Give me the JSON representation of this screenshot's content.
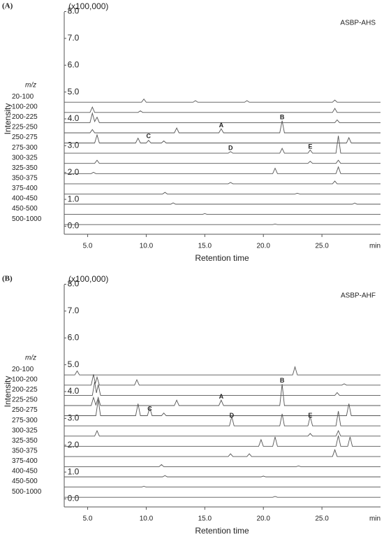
{
  "chart_data": [
    {
      "type": "line",
      "panel_label": "(A)",
      "title": "ASBP-AHS",
      "y_unit": "(x100,000)",
      "legend_title": "m/z",
      "ylabel": "Intensity",
      "xlabel": "Retention time",
      "x_unit": "min",
      "color": "#555555",
      "xlim": [
        3,
        30
      ],
      "ylim": [
        -0.3,
        8.3
      ],
      "xticks": [
        {
          "value": 5,
          "label": "5.0"
        },
        {
          "value": 10,
          "label": "10.0"
        },
        {
          "value": 15,
          "label": "15.0"
        },
        {
          "value": 20,
          "label": "20.0"
        },
        {
          "value": 25,
          "label": "25.0"
        }
      ],
      "yticks": [
        {
          "value": 0,
          "label": "0.0"
        },
        {
          "value": 1,
          "label": "1.0"
        },
        {
          "value": 2,
          "label": "2.0"
        },
        {
          "value": 3,
          "label": "3.0"
        },
        {
          "value": 4,
          "label": "4.0"
        },
        {
          "value": 5,
          "label": "5.0"
        },
        {
          "value": 6,
          "label": "6.0"
        },
        {
          "value": 7,
          "label": "7.0"
        },
        {
          "value": 8,
          "label": "8.0"
        }
      ],
      "series": [
        {
          "name": "20-100",
          "x": [
            3,
            9.6,
            9.8,
            10,
            14,
            14.2,
            14.4,
            18.4,
            18.6,
            18.8,
            25.9,
            26.1,
            26.3,
            30
          ],
          "values": [
            4.62,
            4.62,
            4.74,
            4.62,
            4.62,
            4.68,
            4.62,
            4.62,
            4.68,
            4.62,
            4.62,
            4.7,
            4.62,
            4.62
          ]
        },
        {
          "name": "100-200",
          "x": [
            3,
            5.2,
            5.4,
            5.6,
            9.3,
            9.5,
            9.7,
            25.9,
            26.1,
            26.3,
            30
          ],
          "values": [
            4.24,
            4.24,
            4.44,
            4.24,
            4.24,
            4.3,
            4.24,
            4.24,
            4.39,
            4.24,
            4.24
          ]
        },
        {
          "name": "200-225",
          "x": [
            3,
            5.2,
            5.4,
            5.6,
            5.8,
            6,
            26.1,
            26.3,
            26.5,
            30
          ],
          "values": [
            3.86,
            3.86,
            4.21,
            3.9,
            4.06,
            3.86,
            3.86,
            3.96,
            3.86,
            3.86
          ]
        },
        {
          "name": "225-250",
          "x": [
            3,
            5.2,
            5.4,
            5.6,
            12.4,
            12.6,
            12.8,
            16.2,
            16.4,
            16.6,
            21.4,
            21.6,
            21.8,
            30
          ],
          "values": [
            3.48,
            3.48,
            3.6,
            3.48,
            3.48,
            3.66,
            3.48,
            3.48,
            3.63,
            3.48,
            3.48,
            3.93,
            3.48,
            3.48
          ]
        },
        {
          "name": "250-275",
          "x": [
            3,
            5.6,
            5.8,
            6,
            9.1,
            9.3,
            9.5,
            10,
            10.2,
            10.4,
            11.3,
            11.5,
            11.7,
            27.1,
            27.3,
            27.5,
            30
          ],
          "values": [
            3.1,
            3.1,
            3.4,
            3.1,
            3.1,
            3.28,
            3.1,
            3.1,
            3.2,
            3.1,
            3.1,
            3.18,
            3.1,
            3.1,
            3.3,
            3.1,
            3.1
          ]
        },
        {
          "name": "275-300",
          "x": [
            3,
            17,
            17.2,
            17.4,
            21.4,
            21.6,
            21.8,
            23.8,
            24,
            24.2,
            26.2,
            26.4,
            26.6,
            30
          ],
          "values": [
            2.72,
            2.72,
            2.78,
            2.72,
            2.72,
            2.9,
            2.72,
            2.72,
            2.84,
            2.72,
            2.72,
            3.37,
            2.72,
            2.72
          ]
        },
        {
          "name": "300-325",
          "x": [
            3,
            5.6,
            5.8,
            6,
            23.8,
            24,
            24.2,
            26.2,
            26.4,
            26.6,
            30
          ],
          "values": [
            2.34,
            2.34,
            2.46,
            2.34,
            2.34,
            2.42,
            2.34,
            2.34,
            2.46,
            2.34,
            2.34
          ]
        },
        {
          "name": "325-350",
          "x": [
            3,
            5.3,
            5.5,
            5.7,
            20.8,
            21,
            21.2,
            26.2,
            26.4,
            26.6,
            30
          ],
          "values": [
            1.96,
            1.96,
            2.01,
            1.96,
            1.96,
            2.16,
            1.96,
            1.96,
            2.21,
            1.96,
            1.96
          ]
        },
        {
          "name": "350-375",
          "x": [
            3,
            17,
            17.2,
            17.4,
            25.9,
            26.1,
            26.3,
            30
          ],
          "values": [
            1.58,
            1.58,
            1.63,
            1.58,
            1.58,
            1.68,
            1.58,
            1.58
          ]
        },
        {
          "name": "375-400",
          "x": [
            3,
            11.4,
            11.6,
            11.8,
            22.7,
            22.9,
            23.1,
            30
          ],
          "values": [
            1.2,
            1.2,
            1.26,
            1.2,
            1.2,
            1.23,
            1.2,
            1.2
          ]
        },
        {
          "name": "400-450",
          "x": [
            3,
            12.1,
            12.3,
            12.5,
            27.6,
            27.8,
            28,
            30
          ],
          "values": [
            0.82,
            0.82,
            0.87,
            0.82,
            0.82,
            0.86,
            0.82,
            0.82
          ]
        },
        {
          "name": "450-500",
          "x": [
            3,
            14.8,
            15,
            15.2,
            30
          ],
          "values": [
            0.44,
            0.44,
            0.47,
            0.44,
            0.44
          ]
        },
        {
          "name": "500-1000",
          "x": [
            3,
            20.8,
            21,
            21.2,
            30
          ],
          "values": [
            0.06,
            0.06,
            0.08,
            0.06,
            0.06
          ]
        }
      ],
      "annotations": [
        {
          "text": "A",
          "x": 16.4,
          "y": 3.75
        },
        {
          "text": "B",
          "x": 21.6,
          "y": 4.05
        },
        {
          "text": "C",
          "x": 10.2,
          "y": 3.35
        },
        {
          "text": "D",
          "x": 17.2,
          "y": 2.9
        },
        {
          "text": "E",
          "x": 24.0,
          "y": 2.95
        }
      ]
    },
    {
      "type": "line",
      "panel_label": "(B)",
      "title": "ASBP-AHF",
      "y_unit": "(x100,000)",
      "legend_title": "m/z",
      "ylabel": "Intensity",
      "xlabel": "Retention time",
      "x_unit": "min",
      "color": "#555555",
      "xlim": [
        3,
        30
      ],
      "ylim": [
        -0.3,
        8.3
      ],
      "xticks": [
        {
          "value": 5,
          "label": "5.0"
        },
        {
          "value": 10,
          "label": "10.0"
        },
        {
          "value": 15,
          "label": "15.0"
        },
        {
          "value": 20,
          "label": "20.0"
        },
        {
          "value": 25,
          "label": "25.0"
        }
      ],
      "yticks": [
        {
          "value": 0,
          "label": "0.0"
        },
        {
          "value": 1,
          "label": "1.0"
        },
        {
          "value": 2,
          "label": "2.0"
        },
        {
          "value": 3,
          "label": "3.0"
        },
        {
          "value": 4,
          "label": "4.0"
        },
        {
          "value": 5,
          "label": "5.0"
        },
        {
          "value": 6,
          "label": "6.0"
        },
        {
          "value": 7,
          "label": "7.0"
        },
        {
          "value": 8,
          "label": "8.0"
        }
      ],
      "series": [
        {
          "name": "20-100",
          "x": [
            3,
            3.9,
            4.1,
            4.3,
            22.5,
            22.7,
            22.9,
            30
          ],
          "values": [
            4.62,
            4.62,
            4.77,
            4.62,
            4.62,
            4.92,
            4.62,
            4.62
          ]
        },
        {
          "name": "100-200",
          "x": [
            3,
            5.3,
            5.5,
            5.65,
            5.8,
            6,
            9,
            9.2,
            9.4,
            26.7,
            26.9,
            27.1,
            30
          ],
          "values": [
            4.24,
            4.24,
            4.64,
            4.3,
            4.54,
            4.24,
            4.24,
            4.44,
            4.24,
            4.24,
            4.29,
            4.24,
            4.24
          ]
        },
        {
          "name": "200-225",
          "x": [
            3,
            5.4,
            5.6,
            5.75,
            5.9,
            6.1,
            26.1,
            26.3,
            26.5,
            30
          ],
          "values": [
            3.86,
            3.86,
            4.36,
            3.95,
            4.26,
            3.86,
            3.86,
            3.96,
            3.86,
            3.86
          ]
        },
        {
          "name": "225-250",
          "x": [
            3,
            5.3,
            5.5,
            5.7,
            5.9,
            6.1,
            12.4,
            12.6,
            12.8,
            16.2,
            16.4,
            16.6,
            21.4,
            21.6,
            21.8,
            30
          ],
          "values": [
            3.48,
            3.48,
            3.78,
            3.5,
            3.78,
            3.48,
            3.48,
            3.68,
            3.48,
            3.48,
            3.68,
            3.48,
            3.48,
            4.28,
            3.48,
            3.48
          ]
        },
        {
          "name": "250-275",
          "x": [
            3,
            5.7,
            5.9,
            6.1,
            9.1,
            9.3,
            9.5,
            10.1,
            10.3,
            10.5,
            11.3,
            11.5,
            11.7,
            27.1,
            27.3,
            27.5,
            30
          ],
          "values": [
            3.1,
            3.1,
            3.7,
            3.1,
            3.1,
            3.55,
            3.1,
            3.1,
            3.4,
            3.1,
            3.1,
            3.2,
            3.1,
            3.1,
            3.55,
            3.1,
            3.1
          ]
        },
        {
          "name": "275-300",
          "x": [
            3,
            17.1,
            17.3,
            17.5,
            21.4,
            21.6,
            21.8,
            23.8,
            24,
            24.2,
            26.2,
            26.4,
            26.6,
            30
          ],
          "values": [
            2.72,
            2.72,
            3.07,
            2.72,
            2.72,
            3.17,
            2.72,
            2.72,
            3.07,
            2.72,
            2.72,
            3.27,
            2.72,
            2.72
          ]
        },
        {
          "name": "300-325",
          "x": [
            3,
            5.6,
            5.8,
            6,
            23.8,
            24,
            24.2,
            26.2,
            26.4,
            26.6,
            30
          ],
          "values": [
            2.34,
            2.34,
            2.54,
            2.34,
            2.34,
            2.44,
            2.34,
            2.34,
            2.54,
            2.34,
            2.34
          ]
        },
        {
          "name": "325-350",
          "x": [
            3,
            19.6,
            19.8,
            20,
            20.8,
            21,
            21.2,
            26.2,
            26.4,
            26.6,
            27.2,
            27.4,
            27.6,
            30
          ],
          "values": [
            1.96,
            1.96,
            2.21,
            1.96,
            1.96,
            2.31,
            1.96,
            1.96,
            2.36,
            1.96,
            1.96,
            2.31,
            1.96,
            1.96
          ]
        },
        {
          "name": "350-375",
          "x": [
            3,
            17,
            17.2,
            17.4,
            18.6,
            18.8,
            19,
            25.9,
            26.1,
            26.3,
            30
          ],
          "values": [
            1.58,
            1.58,
            1.68,
            1.58,
            1.58,
            1.68,
            1.58,
            1.58,
            1.83,
            1.58,
            1.58
          ]
        },
        {
          "name": "375-400",
          "x": [
            3,
            11.1,
            11.3,
            11.5,
            22.8,
            23,
            23.2,
            30
          ],
          "values": [
            1.2,
            1.2,
            1.28,
            1.2,
            1.2,
            1.23,
            1.2,
            1.2
          ]
        },
        {
          "name": "400-450",
          "x": [
            3,
            11.4,
            11.6,
            11.8,
            19.8,
            20,
            20.2,
            30
          ],
          "values": [
            0.82,
            0.82,
            0.87,
            0.82,
            0.82,
            0.85,
            0.82,
            0.82
          ]
        },
        {
          "name": "450-500",
          "x": [
            3,
            9.6,
            9.8,
            10,
            30
          ],
          "values": [
            0.44,
            0.44,
            0.47,
            0.44,
            0.44
          ]
        },
        {
          "name": "500-1000",
          "x": [
            3,
            20.8,
            21,
            21.2,
            30
          ],
          "values": [
            0.06,
            0.06,
            0.09,
            0.06,
            0.06
          ]
        }
      ],
      "annotations": [
        {
          "text": "A",
          "x": 16.4,
          "y": 3.8
        },
        {
          "text": "B",
          "x": 21.6,
          "y": 4.4
        },
        {
          "text": "C",
          "x": 10.3,
          "y": 3.35
        },
        {
          "text": "D",
          "x": 17.3,
          "y": 3.1
        },
        {
          "text": "E",
          "x": 24.0,
          "y": 3.1
        }
      ]
    }
  ]
}
